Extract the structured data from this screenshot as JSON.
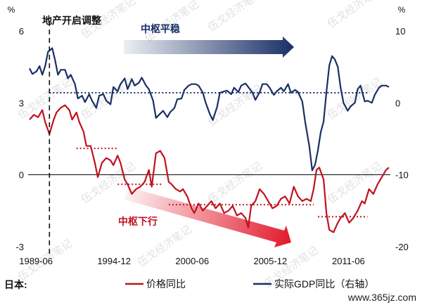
{
  "chart_data": {
    "type": "line",
    "country_label": "日本:",
    "left_axis": {
      "unit": "%",
      "ticks": [
        6,
        3,
        0,
        -3
      ],
      "range": [
        -3,
        6
      ]
    },
    "right_axis": {
      "unit": "%",
      "ticks": [
        10,
        0,
        -10,
        -20
      ],
      "range": [
        -20,
        10
      ]
    },
    "x_ticks": [
      "1989-06",
      "1994-12",
      "2000-06",
      "2005-12",
      "2011-06"
    ],
    "series": [
      {
        "name": "价格同比",
        "axis": "left",
        "color": "#c0121f",
        "points": [
          [
            1989.0,
            2.3
          ],
          [
            1989.3,
            2.5
          ],
          [
            1989.6,
            2.4
          ],
          [
            1989.9,
            2.7
          ],
          [
            1990.1,
            2.2
          ],
          [
            1990.4,
            1.7
          ],
          [
            1990.7,
            2.3
          ],
          [
            1990.9,
            2.6
          ],
          [
            1991.2,
            2.8
          ],
          [
            1991.5,
            2.9
          ],
          [
            1991.8,
            2.7
          ],
          [
            1992.0,
            2.3
          ],
          [
            1992.3,
            2.6
          ],
          [
            1992.5,
            2.2
          ],
          [
            1992.8,
            1.8
          ],
          [
            1993.0,
            1.2
          ],
          [
            1993.3,
            1.2
          ],
          [
            1993.6,
            0.5
          ],
          [
            1993.8,
            -0.1
          ],
          [
            1994.1,
            0.5
          ],
          [
            1994.4,
            0.7
          ],
          [
            1994.7,
            0.6
          ],
          [
            1994.9,
            0.4
          ],
          [
            1995.2,
            0.8
          ],
          [
            1995.4,
            0.5
          ],
          [
            1995.7,
            -0.2
          ],
          [
            1995.9,
            -0.4
          ],
          [
            1996.2,
            -0.8
          ],
          [
            1996.5,
            -0.6
          ],
          [
            1996.8,
            -0.5
          ],
          [
            1997.1,
            -0.3
          ],
          [
            1997.4,
            0.2
          ],
          [
            1997.6,
            -0.5
          ],
          [
            1997.9,
            0.9
          ],
          [
            1998.2,
            1.0
          ],
          [
            1998.5,
            0.7
          ],
          [
            1998.8,
            -0.3
          ],
          [
            1999.0,
            -0.4
          ],
          [
            1999.3,
            -0.6
          ],
          [
            1999.6,
            -0.7
          ],
          [
            1999.8,
            -0.6
          ],
          [
            2000.1,
            -0.9
          ],
          [
            2000.4,
            -1.4
          ],
          [
            2000.6,
            -1.6
          ],
          [
            2000.9,
            -1.2
          ],
          [
            2001.2,
            -1.5
          ],
          [
            2001.5,
            -1.3
          ],
          [
            2001.8,
            -1.1
          ],
          [
            2002.1,
            -1.4
          ],
          [
            2002.4,
            -1.2
          ],
          [
            2002.7,
            -1.6
          ],
          [
            2003.0,
            -1.5
          ],
          [
            2003.3,
            -1.3
          ],
          [
            2003.6,
            -1.7
          ],
          [
            2003.9,
            -1.6
          ],
          [
            2004.2,
            -1.8
          ],
          [
            2004.4,
            -2.2
          ],
          [
            2004.6,
            -1.3
          ],
          [
            2004.9,
            -1.1
          ],
          [
            2005.2,
            -0.6
          ],
          [
            2005.5,
            -0.8
          ],
          [
            2005.8,
            -1.1
          ],
          [
            2006.1,
            -1.4
          ],
          [
            2006.4,
            -1.3
          ],
          [
            2006.7,
            -1.0
          ],
          [
            2007.0,
            -0.9
          ],
          [
            2007.3,
            -1.2
          ],
          [
            2007.6,
            -0.5
          ],
          [
            2007.9,
            -0.9
          ],
          [
            2008.2,
            -1.1
          ],
          [
            2008.5,
            -1.0
          ],
          [
            2008.8,
            -1.1
          ],
          [
            2009.0,
            -0.6
          ],
          [
            2009.2,
            0.2
          ],
          [
            2009.4,
            0.3
          ],
          [
            2009.7,
            -0.2
          ],
          [
            2009.9,
            -1.6
          ],
          [
            2010.1,
            -2.3
          ],
          [
            2010.4,
            -2.4
          ],
          [
            2010.7,
            -2.0
          ],
          [
            2010.9,
            -1.8
          ],
          [
            2011.2,
            -1.6
          ],
          [
            2011.5,
            -2.0
          ],
          [
            2011.8,
            -1.8
          ],
          [
            2012.1,
            -1.5
          ],
          [
            2012.4,
            -1.1
          ],
          [
            2012.6,
            -1.2
          ],
          [
            2012.9,
            -0.6
          ],
          [
            2013.2,
            -0.8
          ],
          [
            2013.5,
            -0.4
          ],
          [
            2013.8,
            -0.1
          ],
          [
            2014.1,
            0.2
          ],
          [
            2014.3,
            0.3
          ]
        ]
      },
      {
        "name": "实际GDP同比（右轴）",
        "axis": "right",
        "color": "#1a2f66",
        "points": [
          [
            1989.0,
            4.8
          ],
          [
            1989.2,
            4.0
          ],
          [
            1989.5,
            4.4
          ],
          [
            1989.7,
            5.1
          ],
          [
            1989.9,
            3.9
          ],
          [
            1990.1,
            5.1
          ],
          [
            1990.3,
            7.1
          ],
          [
            1990.6,
            7.6
          ],
          [
            1990.8,
            5.9
          ],
          [
            1991.0,
            3.9
          ],
          [
            1991.2,
            4.6
          ],
          [
            1991.5,
            4.6
          ],
          [
            1991.7,
            3.4
          ],
          [
            1991.9,
            3.9
          ],
          [
            1992.2,
            2.6
          ],
          [
            1992.4,
            0.6
          ],
          [
            1992.7,
            1.0
          ],
          [
            1992.9,
            0.1
          ],
          [
            1993.2,
            1.2
          ],
          [
            1993.4,
            0.3
          ],
          [
            1993.7,
            -0.7
          ],
          [
            1993.9,
            1.0
          ],
          [
            1994.2,
            1.2
          ],
          [
            1994.4,
            0.3
          ],
          [
            1994.7,
            -0.2
          ],
          [
            1994.9,
            2.2
          ],
          [
            1995.2,
            1.6
          ],
          [
            1995.4,
            2.6
          ],
          [
            1995.7,
            3.4
          ],
          [
            1995.9,
            1.9
          ],
          [
            1996.2,
            3.3
          ],
          [
            1996.4,
            2.4
          ],
          [
            1996.7,
            2.8
          ],
          [
            1996.9,
            3.5
          ],
          [
            1997.2,
            2.4
          ],
          [
            1997.4,
            1.9
          ],
          [
            1997.7,
            0.3
          ],
          [
            1997.9,
            -2.1
          ],
          [
            1998.2,
            -1.5
          ],
          [
            1998.4,
            -1.1
          ],
          [
            1998.7,
            -2.0
          ],
          [
            1998.9,
            -1.3
          ],
          [
            1999.2,
            -0.7
          ],
          [
            1999.4,
            0.5
          ],
          [
            1999.7,
            0.6
          ],
          [
            1999.9,
            1.8
          ],
          [
            2000.2,
            2.4
          ],
          [
            2000.4,
            2.6
          ],
          [
            2000.7,
            2.6
          ],
          [
            2000.9,
            2.4
          ],
          [
            2001.2,
            1.4
          ],
          [
            2001.4,
            0.0
          ],
          [
            2001.7,
            -1.6
          ],
          [
            2001.9,
            -2.4
          ],
          [
            2002.2,
            -0.6
          ],
          [
            2002.4,
            1.4
          ],
          [
            2002.7,
            1.6
          ],
          [
            2002.9,
            1.7
          ],
          [
            2003.2,
            1.2
          ],
          [
            2003.4,
            2.1
          ],
          [
            2003.7,
            1.5
          ],
          [
            2003.9,
            2.4
          ],
          [
            2004.2,
            2.7
          ],
          [
            2004.4,
            2.2
          ],
          [
            2004.7,
            1.4
          ],
          [
            2004.9,
            0.4
          ],
          [
            2005.2,
            1.5
          ],
          [
            2005.4,
            2.6
          ],
          [
            2005.7,
            2.6
          ],
          [
            2005.9,
            2.1
          ],
          [
            2006.2,
            1.1
          ],
          [
            2006.4,
            1.6
          ],
          [
            2006.7,
            2.1
          ],
          [
            2006.9,
            1.6
          ],
          [
            2007.2,
            2.6
          ],
          [
            2007.4,
            1.4
          ],
          [
            2007.7,
            1.8
          ],
          [
            2007.9,
            1.5
          ],
          [
            2008.2,
            0.2
          ],
          [
            2008.4,
            -2.6
          ],
          [
            2008.7,
            -6.1
          ],
          [
            2008.9,
            -9.4
          ],
          [
            2009.1,
            -8.6
          ],
          [
            2009.3,
            -6.6
          ],
          [
            2009.5,
            -4.1
          ],
          [
            2009.7,
            -2.6
          ],
          [
            2009.9,
            1.5
          ],
          [
            2010.1,
            5.2
          ],
          [
            2010.3,
            6.5
          ],
          [
            2010.5,
            6.0
          ],
          [
            2010.7,
            5.0
          ],
          [
            2010.9,
            2.1
          ],
          [
            2011.1,
            0.0
          ],
          [
            2011.4,
            -1.1
          ],
          [
            2011.6,
            -0.5
          ],
          [
            2011.9,
            0.0
          ],
          [
            2012.1,
            1.9
          ],
          [
            2012.3,
            2.4
          ],
          [
            2012.6,
            0.2
          ],
          [
            2012.8,
            0.3
          ],
          [
            2013.1,
            0.0
          ],
          [
            2013.3,
            1.1
          ],
          [
            2013.6,
            2.1
          ],
          [
            2013.8,
            2.4
          ],
          [
            2014.1,
            2.4
          ],
          [
            2014.3,
            2.2
          ]
        ]
      }
    ],
    "reference_lines": [
      {
        "axis": "right",
        "y": 1.4,
        "x_range": [
          1990.4,
          2012.8
        ]
      },
      {
        "axis": "left",
        "y": 1.1,
        "x_range": [
          1992.3,
          1995.2
        ]
      },
      {
        "axis": "left",
        "y": -0.4,
        "x_range": [
          1995.2,
          1998.3
        ]
      },
      {
        "axis": "left",
        "y": -1.25,
        "x_range": [
          1998.8,
          2009.0
        ]
      },
      {
        "axis": "left",
        "y": -1.75,
        "x_range": [
          2009.3,
          2012.8
        ]
      }
    ],
    "event_line": {
      "x": 1990.4,
      "label": "地产开启调整"
    },
    "arrows": [
      {
        "label": "中枢平稳",
        "color": "#1a2f66"
      },
      {
        "label": "中枢下行",
        "color": "#c0121f"
      }
    ],
    "legend": {
      "placement": "bottom"
    }
  },
  "watermark": {
    "text": "伍戈经济笔记",
    "site": "www.365jz.com"
  },
  "colors": {
    "price": "#c0121f",
    "gdp": "#1a2f66",
    "zero_line": "#000000"
  }
}
